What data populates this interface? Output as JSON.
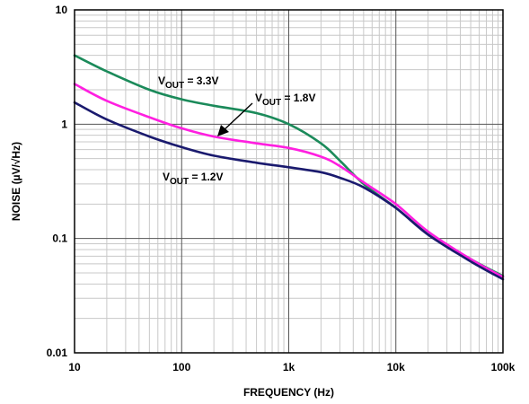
{
  "chart_data": {
    "type": "line",
    "xlabel": "FREQUENCY (Hz)",
    "ylabel": "NOISE (µV/√Hz)",
    "xscale": "log",
    "yscale": "log",
    "xlim": [
      10,
      100000
    ],
    "ylim": [
      0.01,
      10
    ],
    "grid": true,
    "x_ticks": [
      {
        "value": 10,
        "label": "10"
      },
      {
        "value": 100,
        "label": "100"
      },
      {
        "value": 1000,
        "label": "1k"
      },
      {
        "value": 10000,
        "label": "10k"
      },
      {
        "value": 100000,
        "label": "100k"
      }
    ],
    "y_ticks": [
      {
        "value": 0.01,
        "label": "0.01"
      },
      {
        "value": 0.1,
        "label": "0.1"
      },
      {
        "value": 1,
        "label": "1"
      },
      {
        "value": 10,
        "label": "10"
      }
    ],
    "series": [
      {
        "name": "VOUT = 3.3V",
        "label_main": "V",
        "label_sub": "OUT",
        "label_rest": " = 3.3V",
        "color": "#1b8a5a",
        "x": [
          10,
          20,
          50,
          100,
          200,
          500,
          1000,
          2000,
          3000,
          5000,
          10000,
          20000,
          50000,
          100000
        ],
        "y": [
          4.0,
          2.9,
          2.0,
          1.65,
          1.45,
          1.25,
          1.0,
          0.68,
          0.48,
          0.3,
          0.185,
          0.11,
          0.066,
          0.047
        ]
      },
      {
        "name": "VOUT = 1.8V",
        "label_main": "V",
        "label_sub": "OUT",
        "label_rest": " = 1.8V",
        "color": "#ff1fe0",
        "x": [
          10,
          20,
          50,
          100,
          200,
          500,
          1000,
          2000,
          3000,
          5000,
          10000,
          20000,
          50000,
          100000
        ],
        "y": [
          2.25,
          1.6,
          1.15,
          0.92,
          0.78,
          0.68,
          0.62,
          0.52,
          0.43,
          0.31,
          0.2,
          0.115,
          0.066,
          0.046
        ]
      },
      {
        "name": "VOUT = 1.2V",
        "label_main": "V",
        "label_sub": "OUT",
        "label_rest": " = 1.2V",
        "color": "#1a1a6e",
        "x": [
          10,
          20,
          50,
          100,
          200,
          500,
          1000,
          2000,
          3000,
          5000,
          10000,
          20000,
          50000,
          100000
        ],
        "y": [
          1.55,
          1.1,
          0.78,
          0.63,
          0.53,
          0.46,
          0.42,
          0.38,
          0.34,
          0.28,
          0.185,
          0.108,
          0.063,
          0.044
        ]
      }
    ]
  }
}
